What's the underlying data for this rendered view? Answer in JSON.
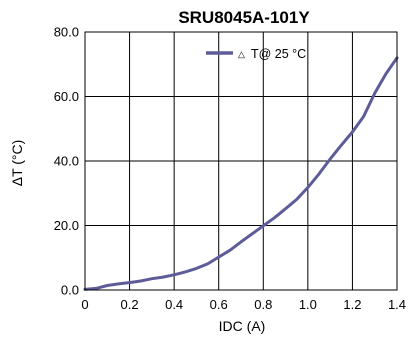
{
  "chart_data": {
    "type": "line",
    "title": "SRU8045A-101Y",
    "xlabel": "IDC (A)",
    "ylabel": "ΔT (°C)",
    "xlim": [
      0,
      1.4
    ],
    "ylim": [
      0,
      80
    ],
    "x_ticks": [
      "0",
      "0.2",
      "0.4",
      "0.6",
      "0.8",
      "1.0",
      "1.2",
      "1.4"
    ],
    "y_ticks": [
      "0.0",
      "20.0",
      "40.0",
      "60.0",
      "80.0"
    ],
    "grid": true,
    "legend_position": "top-center",
    "series": [
      {
        "name": "T@ 25 °C",
        "legend_marker": "△",
        "color": "#5d5c99",
        "x": [
          0,
          0.05,
          0.1,
          0.15,
          0.2,
          0.25,
          0.3,
          0.35,
          0.4,
          0.45,
          0.5,
          0.55,
          0.6,
          0.65,
          0.7,
          0.75,
          0.8,
          0.85,
          0.9,
          0.95,
          1.0,
          1.05,
          1.1,
          1.15,
          1.2,
          1.25,
          1.3,
          1.35,
          1.4
        ],
        "y": [
          0.2,
          0.5,
          1.4,
          1.9,
          2.3,
          2.8,
          3.5,
          4.0,
          4.7,
          5.6,
          6.7,
          8.1,
          10.2,
          12.3,
          14.9,
          17.4,
          19.9,
          22.4,
          25.2,
          28.1,
          31.8,
          36.0,
          40.6,
          44.9,
          49.0,
          53.8,
          61.0,
          67.0,
          72.0
        ]
      }
    ]
  }
}
